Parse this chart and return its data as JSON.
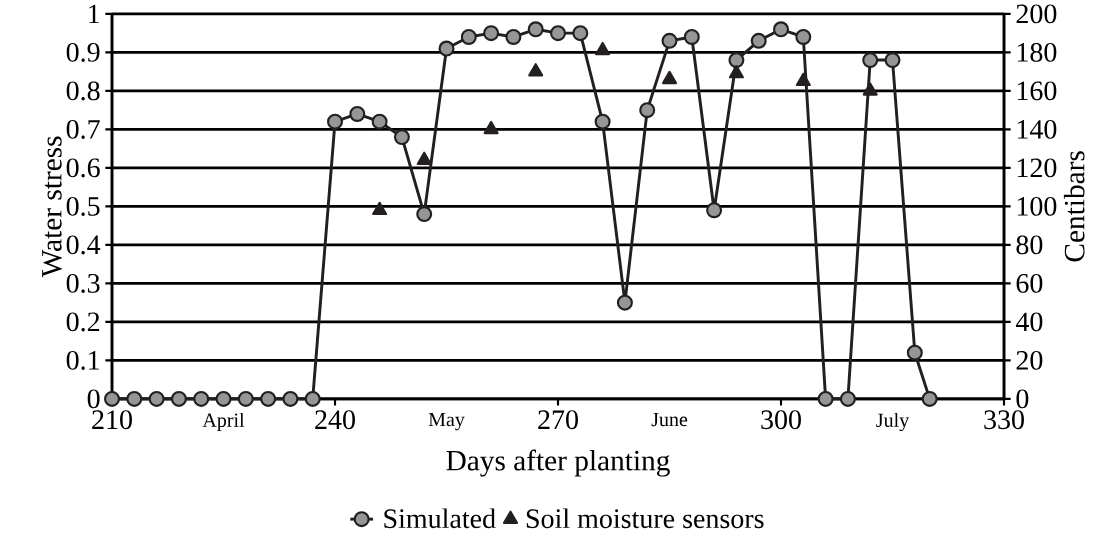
{
  "chart_data": {
    "type": "line",
    "xlabel": "Days after planting",
    "ylabel": "Water stress",
    "y2label": "Centibars",
    "xlim": [
      210,
      330
    ],
    "xticks": [
      210,
      {
        "value": 225,
        "label": "April"
      },
      240,
      {
        "value": 255,
        "label": "May"
      },
      270,
      {
        "value": 285,
        "label": "June"
      },
      300,
      {
        "value": 315,
        "label": "July"
      },
      330
    ],
    "ylim": [
      0,
      1
    ],
    "yticks": [
      0,
      0.1,
      0.2,
      0.3,
      0.4,
      0.5,
      0.6,
      0.7,
      0.8,
      0.9,
      1
    ],
    "y2lim": [
      0,
      200
    ],
    "y2ticks": [
      0,
      20,
      40,
      60,
      80,
      100,
      120,
      140,
      160,
      180,
      200
    ],
    "grid": "y",
    "legend": "bottom",
    "series": [
      {
        "name": "Simulated",
        "type": "line",
        "marker": "circle",
        "color": "#231f20",
        "x": [
          210,
          213,
          216,
          219,
          222,
          225,
          228,
          231,
          234,
          237,
          240,
          243,
          246,
          249,
          252,
          255,
          258,
          261,
          264,
          267,
          270,
          273,
          276,
          279,
          282,
          285,
          288,
          291,
          294,
          297,
          300,
          303,
          306,
          309,
          312,
          315,
          318,
          320
        ],
        "values": [
          0,
          0,
          0,
          0,
          0,
          0,
          0,
          0,
          0,
          0,
          0.72,
          0.74,
          0.72,
          0.68,
          0.48,
          0.91,
          0.94,
          0.95,
          0.94,
          0.96,
          0.95,
          0.95,
          0.72,
          0.25,
          0.75,
          0.93,
          0.94,
          0.49,
          0.88,
          0.93,
          0.96,
          0.94,
          0,
          0,
          0.88,
          0.88,
          0.12,
          0
        ]
      },
      {
        "name": "Soil moisture sensors",
        "type": "scatter",
        "marker": "triangle",
        "color": "#231f20",
        "axis": "y2",
        "x": [
          246,
          252,
          261,
          267,
          276,
          285,
          294,
          303,
          312
        ],
        "values": [
          98,
          124,
          140,
          170,
          181,
          166,
          169,
          165,
          160
        ]
      }
    ]
  }
}
